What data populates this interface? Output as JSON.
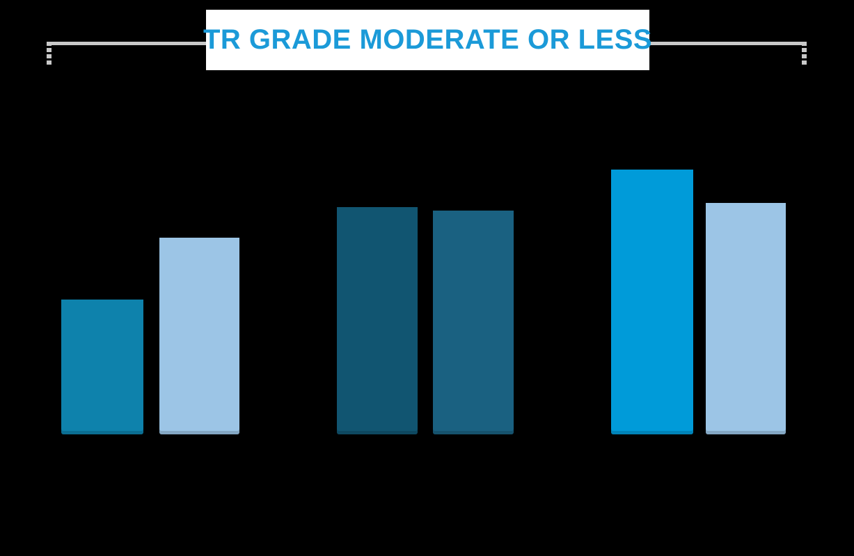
{
  "chart_data": {
    "type": "bar",
    "title": "TR GRADE MODERATE OR LESS",
    "categories": [
      "",
      "",
      ""
    ],
    "groups": [
      {
        "label": "",
        "bars": [
          {
            "value_pct_est": 34.6,
            "color": "#0E82AC"
          },
          {
            "value_pct_est": 50.5,
            "color": "#9CC5E6"
          }
        ]
      },
      {
        "label": "",
        "bars": [
          {
            "value_pct_est": 58.4,
            "color": "#115571"
          },
          {
            "value_pct_est": 57.5,
            "color": "#1A6181"
          }
        ]
      },
      {
        "label": "",
        "bars": [
          {
            "value_pct_est": 68.0,
            "color": "#009BD9"
          },
          {
            "value_pct_est": 59.5,
            "color": "#9CC5E6"
          }
        ]
      }
    ],
    "ylim": [
      0,
      100
    ],
    "axes_visible": false,
    "data_labels_visible": false,
    "legend_position": "none",
    "background_color": "#000000"
  },
  "title_box": {
    "background": "#FFFFFF",
    "text_color": "#1B9AD8"
  },
  "bracket": {
    "color": "#C9C9C9",
    "style": "horizontal rule with dashed vertical end ticks"
  }
}
